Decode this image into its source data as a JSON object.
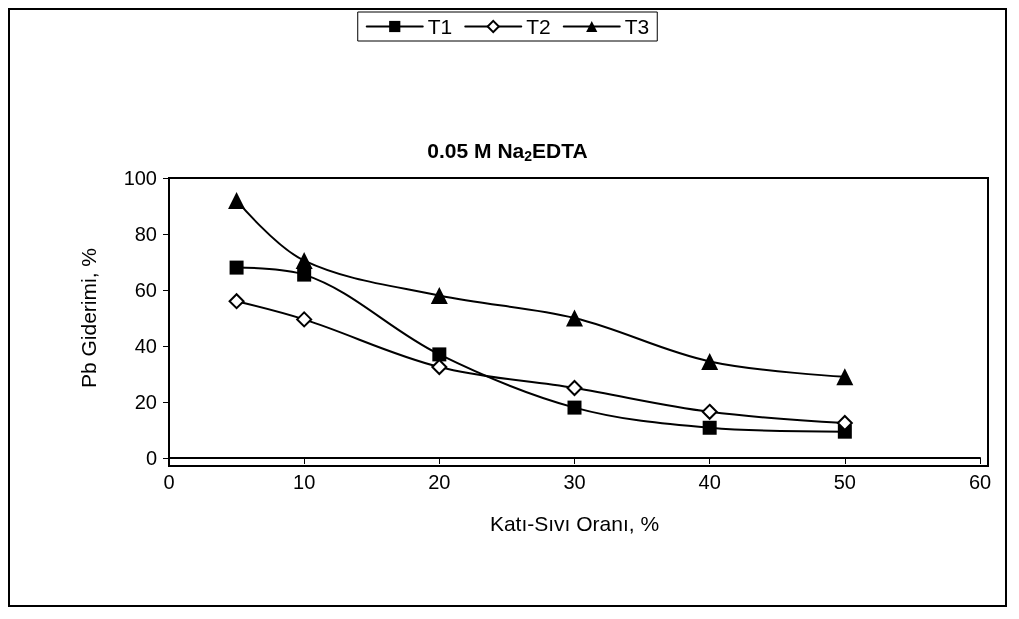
{
  "chart_data": {
    "type": "line",
    "title": "0.05 M Na$_{2}$EDTA",
    "xlabel": "Katı-Sıvı Oranı, %",
    "ylabel": "Pb Giderimi, %",
    "x": [
      5,
      10,
      20,
      30,
      40,
      50
    ],
    "series": [
      {
        "name": "T1",
        "color": "#000000",
        "marker": "square",
        "values": [
          68,
          65.5,
          37,
          18,
          10.8,
          9.4
        ]
      },
      {
        "name": "T2",
        "color": "#000000",
        "marker": "diamond",
        "values": [
          56,
          49.5,
          32.5,
          25,
          16.5,
          12.5
        ]
      },
      {
        "name": "T3",
        "color": "#000000",
        "marker": "triangle",
        "values": [
          92,
          70.5,
          58,
          50,
          34.5,
          29
        ]
      }
    ],
    "xlim": [
      0,
      60
    ],
    "xticks": [
      0,
      10,
      20,
      30,
      40,
      50,
      60
    ],
    "ylim": [
      0,
      100
    ],
    "yticks": [
      0,
      20,
      40,
      60,
      80,
      100
    ],
    "grid": false,
    "legend": "top",
    "line_style": "solid"
  }
}
